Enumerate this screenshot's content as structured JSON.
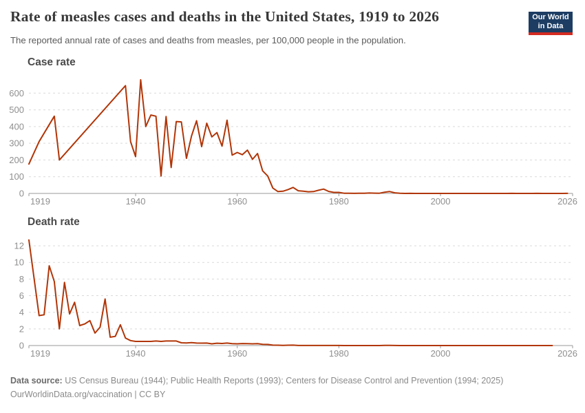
{
  "header": {
    "title": "Rate of measles cases and deaths in the United States, 1919 to 2026",
    "subtitle": "The reported annual rate of cases and deaths from measles, per 100,000 people in the population.",
    "logo_line1": "Our World",
    "logo_line2": "in Data"
  },
  "footer": {
    "source_label": "Data source:",
    "source_text": " US Census Bureau (1944); Public Health Reports (1993); Centers for Disease Control and Prevention (1994; 2025)",
    "license_line": "OurWorldinData.org/vaccination | CC BY"
  },
  "theme": {
    "line_color": "#b13507",
    "grid_color": "#d9d9d9",
    "axis_color": "#9a9a9a",
    "tick_label_color": "#8f8f8f",
    "title_color": "#383838",
    "subtitle_color": "#5a5a5a",
    "panel_title_color": "#4a4a4a",
    "footer_color": "#8a8a8a",
    "logo_bg": "#1d3d63",
    "logo_bar": "#d42b21"
  },
  "chart_data": [
    {
      "type": "line",
      "title": "Case rate",
      "unit": "cases per 100,000 people",
      "xlim": [
        1919,
        2026
      ],
      "ylim": [
        0,
        700
      ],
      "xticks": [
        1919,
        1940,
        1960,
        1980,
        2000,
        2026
      ],
      "yticks": [
        0,
        100,
        200,
        300,
        400,
        500,
        600
      ],
      "grid": "horizontal-dashed",
      "legend": "none",
      "series": [
        {
          "name": "Measles case rate",
          "points": [
            [
              1919,
              176
            ],
            [
              1921,
              310
            ],
            [
              1924,
              462
            ],
            [
              1925,
              200
            ],
            [
              1938,
              645
            ],
            [
              1939,
              310
            ],
            [
              1940,
              220
            ],
            [
              1941,
              680
            ],
            [
              1942,
              400
            ],
            [
              1943,
              469
            ],
            [
              1944,
              462
            ],
            [
              1945,
              104
            ],
            [
              1946,
              460
            ],
            [
              1947,
              155
            ],
            [
              1948,
              430
            ],
            [
              1949,
              428
            ],
            [
              1950,
              210
            ],
            [
              1951,
              344
            ],
            [
              1952,
              435
            ],
            [
              1953,
              280
            ],
            [
              1954,
              420
            ],
            [
              1955,
              338
            ],
            [
              1956,
              364
            ],
            [
              1957,
              283
            ],
            [
              1958,
              438
            ],
            [
              1959,
              229
            ],
            [
              1960,
              245
            ],
            [
              1961,
              232
            ],
            [
              1962,
              259
            ],
            [
              1963,
              204
            ],
            [
              1964,
              239
            ],
            [
              1965,
              135
            ],
            [
              1966,
              104
            ],
            [
              1967,
              32
            ],
            [
              1968,
              11
            ],
            [
              1969,
              13
            ],
            [
              1970,
              23
            ],
            [
              1971,
              36
            ],
            [
              1972,
              16
            ],
            [
              1973,
              13
            ],
            [
              1974,
              10
            ],
            [
              1975,
              11
            ],
            [
              1976,
              19
            ],
            [
              1977,
              26
            ],
            [
              1978,
              12
            ],
            [
              1979,
              6
            ],
            [
              1980,
              6
            ],
            [
              1981,
              1.4
            ],
            [
              1982,
              0.7
            ],
            [
              1983,
              0.6
            ],
            [
              1984,
              1.1
            ],
            [
              1985,
              1.2
            ],
            [
              1986,
              2.6
            ],
            [
              1987,
              1.5
            ],
            [
              1988,
              1.4
            ],
            [
              1989,
              7.3
            ],
            [
              1990,
              11.2
            ],
            [
              1991,
              3.8
            ],
            [
              1992,
              0.9
            ],
            [
              1993,
              0.1
            ],
            [
              1994,
              0.4
            ],
            [
              1995,
              0.1
            ],
            [
              1996,
              0.2
            ],
            [
              1997,
              0.1
            ],
            [
              1998,
              0.05
            ],
            [
              1999,
              0.05
            ],
            [
              2000,
              0.03
            ],
            [
              2001,
              0.04
            ],
            [
              2002,
              0.02
            ],
            [
              2003,
              0.02
            ],
            [
              2004,
              0.01
            ],
            [
              2005,
              0.02
            ],
            [
              2006,
              0.02
            ],
            [
              2007,
              0.01
            ],
            [
              2008,
              0.05
            ],
            [
              2009,
              0.02
            ],
            [
              2010,
              0.02
            ],
            [
              2011,
              0.07
            ],
            [
              2012,
              0.02
            ],
            [
              2013,
              0.06
            ],
            [
              2014,
              0.21
            ],
            [
              2015,
              0.06
            ],
            [
              2016,
              0.03
            ],
            [
              2017,
              0.04
            ],
            [
              2018,
              0.11
            ],
            [
              2019,
              0.39
            ],
            [
              2020,
              0.01
            ],
            [
              2021,
              0.02
            ],
            [
              2022,
              0.04
            ],
            [
              2023,
              0.02
            ],
            [
              2024,
              0.09
            ],
            [
              2025,
              0.33
            ]
          ]
        }
      ]
    },
    {
      "type": "line",
      "title": "Death rate",
      "unit": "deaths per 100,000 people",
      "xlim": [
        1919,
        2026
      ],
      "ylim": [
        0,
        13
      ],
      "xticks": [
        1919,
        1940,
        1960,
        1980,
        2000,
        2026
      ],
      "yticks": [
        0,
        2,
        4,
        6,
        8,
        10,
        12
      ],
      "grid": "horizontal-dashed",
      "legend": "none",
      "series": [
        {
          "name": "Measles death rate",
          "points": [
            [
              1919,
              12.7
            ],
            [
              1921,
              3.6
            ],
            [
              1922,
              3.7
            ],
            [
              1923,
              9.6
            ],
            [
              1924,
              7.7
            ],
            [
              1925,
              2.0
            ],
            [
              1926,
              7.6
            ],
            [
              1927,
              3.8
            ],
            [
              1928,
              5.2
            ],
            [
              1929,
              2.4
            ],
            [
              1930,
              2.6
            ],
            [
              1931,
              3.0
            ],
            [
              1932,
              1.5
            ],
            [
              1933,
              2.2
            ],
            [
              1934,
              5.6
            ],
            [
              1935,
              1.0
            ],
            [
              1936,
              1.1
            ],
            [
              1937,
              2.5
            ],
            [
              1938,
              0.9
            ],
            [
              1939,
              0.6
            ],
            [
              1940,
              0.5
            ],
            [
              1941,
              0.5
            ],
            [
              1942,
              0.5
            ],
            [
              1943,
              0.5
            ],
            [
              1944,
              0.55
            ],
            [
              1945,
              0.5
            ],
            [
              1946,
              0.55
            ],
            [
              1947,
              0.55
            ],
            [
              1948,
              0.55
            ],
            [
              1949,
              0.33
            ],
            [
              1950,
              0.31
            ],
            [
              1951,
              0.35
            ],
            [
              1952,
              0.3
            ],
            [
              1953,
              0.29
            ],
            [
              1954,
              0.3
            ],
            [
              1955,
              0.21
            ],
            [
              1956,
              0.28
            ],
            [
              1957,
              0.25
            ],
            [
              1958,
              0.3
            ],
            [
              1959,
              0.22
            ],
            [
              1960,
              0.21
            ],
            [
              1961,
              0.24
            ],
            [
              1962,
              0.22
            ],
            [
              1963,
              0.21
            ],
            [
              1964,
              0.22
            ],
            [
              1965,
              0.14
            ],
            [
              1966,
              0.13
            ],
            [
              1967,
              0.05
            ],
            [
              1968,
              0.04
            ],
            [
              1969,
              0.02
            ],
            [
              1970,
              0.04
            ],
            [
              1971,
              0.05
            ],
            [
              1972,
              0.01
            ],
            [
              1973,
              0.01
            ],
            [
              1974,
              0.01
            ],
            [
              1975,
              0.01
            ],
            [
              1976,
              0.01
            ],
            [
              1977,
              0.01
            ],
            [
              1978,
              0.01
            ],
            [
              1979,
              0.005
            ],
            [
              1980,
              0.005
            ],
            [
              1981,
              0.003
            ],
            [
              1982,
              0.002
            ],
            [
              1983,
              0.002
            ],
            [
              1984,
              0.002
            ],
            [
              1985,
              0.002
            ],
            [
              1986,
              0.002
            ],
            [
              1987,
              0.002
            ],
            [
              1988,
              0.002
            ],
            [
              1989,
              0.013
            ],
            [
              1990,
              0.026
            ],
            [
              1991,
              0.011
            ],
            [
              1992,
              0.002
            ],
            [
              1993,
              0.001
            ],
            [
              1994,
              0.001
            ],
            [
              1995,
              0.001
            ],
            [
              1996,
              0.001
            ],
            [
              1997,
              0.001
            ],
            [
              1998,
              0.001
            ],
            [
              1999,
              0.001
            ],
            [
              2000,
              0.001
            ],
            [
              2001,
              0.001
            ],
            [
              2002,
              0.001
            ],
            [
              2003,
              0.001
            ],
            [
              2004,
              0.001
            ],
            [
              2005,
              0.001
            ],
            [
              2006,
              0.001
            ],
            [
              2007,
              0.001
            ],
            [
              2008,
              0.001
            ],
            [
              2009,
              0.001
            ],
            [
              2010,
              0.001
            ],
            [
              2011,
              0.001
            ],
            [
              2012,
              0.001
            ],
            [
              2013,
              0.001
            ],
            [
              2014,
              0.001
            ],
            [
              2015,
              0.001
            ],
            [
              2016,
              0.001
            ],
            [
              2017,
              0.001
            ],
            [
              2018,
              0.001
            ],
            [
              2019,
              0.001
            ],
            [
              2020,
              0.001
            ],
            [
              2021,
              0.001
            ],
            [
              2022,
              0.001
            ]
          ]
        }
      ]
    }
  ]
}
